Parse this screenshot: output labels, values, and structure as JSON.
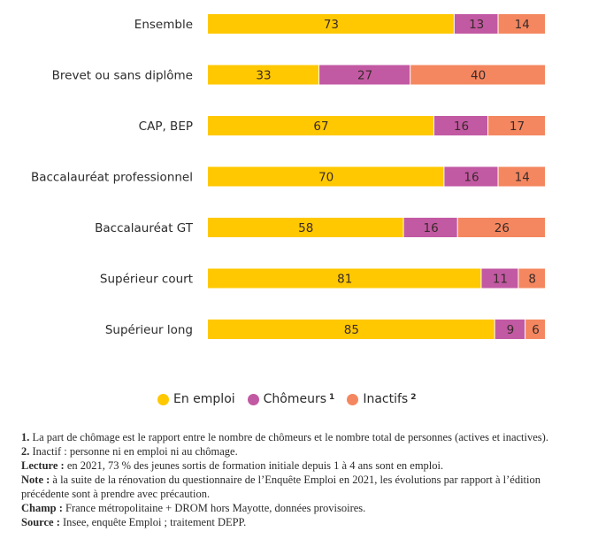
{
  "chart_data": {
    "type": "bar",
    "orientation": "horizontal",
    "stacked": true,
    "categories": [
      "Ensemble",
      "Brevet ou sans diplôme",
      "CAP, BEP",
      "Baccalauréat professionnel",
      "Baccalauréat GT",
      "Supérieur court",
      "Supérieur long"
    ],
    "series": [
      {
        "name": "En emploi",
        "color": "#ffc800",
        "values": [
          73,
          33,
          67,
          70,
          58,
          81,
          85
        ]
      },
      {
        "name": "Chômeurs",
        "color": "#c259a3",
        "values": [
          13,
          27,
          16,
          16,
          16,
          11,
          9
        ]
      },
      {
        "name": "Inactifs",
        "color": "#f4875f",
        "values": [
          14,
          40,
          17,
          14,
          26,
          8,
          6
        ]
      }
    ],
    "xlim": [
      0,
      100
    ],
    "title": "",
    "xlabel": "",
    "ylabel": "",
    "grid": false,
    "legend_position": "bottom"
  },
  "legend": [
    {
      "label": "En emploi",
      "sup": "",
      "color": "#ffc800"
    },
    {
      "label": "Chômeurs",
      "sup": "1",
      "color": "#c259a3"
    },
    {
      "label": "Inactifs",
      "sup": "2",
      "color": "#f4875f"
    }
  ],
  "notes": [
    {
      "bold": "1.",
      "text": " La part de chômage est le rapport entre le nombre de chômeurs et le nombre total de personnes (actives et inactives)."
    },
    {
      "bold": "2.",
      "text": " Inactif : personne ni en emploi ni au chômage."
    },
    {
      "bold": "Lecture :",
      "text": " en 2021, 73 % des jeunes sortis de formation initiale depuis 1 à 4 ans sont en emploi."
    },
    {
      "bold": "Note :",
      "text": " à la suite de la rénovation du questionnaire de l’Enquête Emploi en 2021, les évolutions par rapport à l’édition précédente sont à prendre avec précaution."
    },
    {
      "bold": "Champ :",
      "text": " France métropolitaine + DROM hors Mayotte, données provisoires."
    },
    {
      "bold": "Source :",
      "text": " Insee, enquête Emploi ; traitement DEPP."
    }
  ]
}
